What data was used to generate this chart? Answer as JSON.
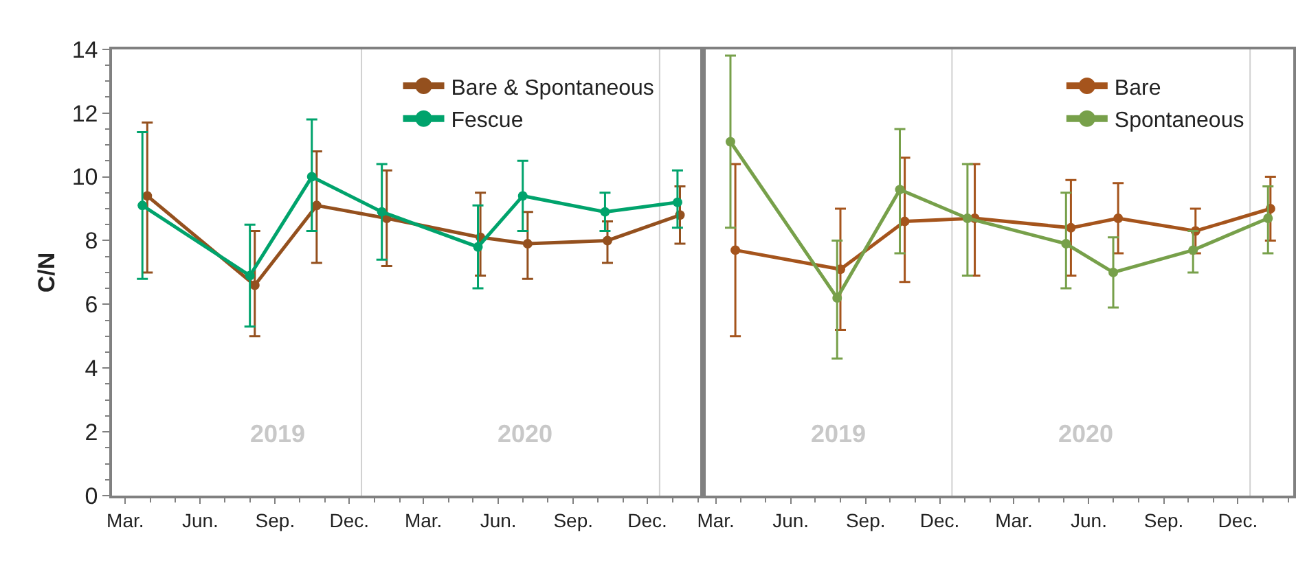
{
  "chart_data": [
    {
      "type": "line",
      "ylabel": "C/N",
      "xlim": [
        "2019-02-13",
        "2021-02-07"
      ],
      "ylim": [
        0,
        14
      ],
      "yticks": [
        0,
        2,
        4,
        6,
        8,
        10,
        12,
        14
      ],
      "xticks": [
        {
          "value": "2019-03-01",
          "label": "Mar."
        },
        {
          "value": "2019-06-01",
          "label": "Jun."
        },
        {
          "value": "2019-09-01",
          "label": "Sep."
        },
        {
          "value": "2019-12-01",
          "label": "Dec."
        },
        {
          "value": "2020-03-01",
          "label": "Mar."
        },
        {
          "value": "2020-06-01",
          "label": "Jun."
        },
        {
          "value": "2020-09-01",
          "label": "Sep."
        },
        {
          "value": "2020-12-01",
          "label": "Dec."
        }
      ],
      "legend": "top right",
      "marker": "circle",
      "grid": false,
      "ref_lines": [
        {
          "axis": "x",
          "value": "2019-12-16",
          "color": "#d0d0d0"
        },
        {
          "axis": "x",
          "value": "2020-12-16",
          "color": "#d0d0d0"
        }
      ],
      "annotations": [
        "2019",
        "2020"
      ],
      "series": [
        {
          "name": "Bare & Spontaneous",
          "color": "#94501e",
          "x": [
            "2019-03-28",
            "2019-08-07",
            "2019-10-22",
            "2020-01-16",
            "2020-05-10",
            "2020-07-07",
            "2020-10-13",
            "2021-01-10"
          ],
          "values": [
            9.4,
            6.6,
            9.1,
            8.7,
            8.1,
            7.9,
            8.0,
            8.8
          ],
          "errors": [
            [
              7.0,
              11.7
            ],
            [
              5.0,
              8.3
            ],
            [
              7.3,
              10.8
            ],
            [
              7.2,
              10.2
            ],
            [
              6.9,
              9.5
            ],
            [
              6.8,
              8.9
            ],
            [
              7.3,
              8.6
            ],
            [
              7.9,
              9.7
            ]
          ]
        },
        {
          "name": "Fescue",
          "color": "#00a36c",
          "x": [
            "2019-03-22",
            "2019-08-01",
            "2019-10-16",
            "2020-01-10",
            "2020-05-07",
            "2020-07-01",
            "2020-10-10",
            "2021-01-07"
          ],
          "values": [
            9.1,
            6.9,
            10.0,
            8.9,
            7.8,
            9.4,
            8.9,
            9.2
          ],
          "errors": [
            [
              6.8,
              11.4
            ],
            [
              5.3,
              8.5
            ],
            [
              8.3,
              11.8
            ],
            [
              7.4,
              10.4
            ],
            [
              6.5,
              9.1
            ],
            [
              8.3,
              10.5
            ],
            [
              8.3,
              9.5
            ],
            [
              8.4,
              10.2
            ]
          ]
        }
      ]
    },
    {
      "type": "line",
      "xlim": [
        "2019-02-13",
        "2021-02-07"
      ],
      "ylim": [
        0,
        14
      ],
      "yticks": [
        0,
        2,
        4,
        6,
        8,
        10,
        12,
        14
      ],
      "tick_labels": "x",
      "xticks": [
        {
          "value": "2019-03-01",
          "label": "Mar."
        },
        {
          "value": "2019-06-01",
          "label": "Jun."
        },
        {
          "value": "2019-09-01",
          "label": "Sep."
        },
        {
          "value": "2019-12-01",
          "label": "Dec."
        },
        {
          "value": "2020-03-01",
          "label": "Mar."
        },
        {
          "value": "2020-06-01",
          "label": "Jun."
        },
        {
          "value": "2020-09-01",
          "label": "Sep."
        },
        {
          "value": "2020-12-01",
          "label": "Dec."
        }
      ],
      "legend": "top right",
      "marker": "circle",
      "grid": false,
      "ref_lines": [
        {
          "axis": "x",
          "value": "2019-12-16",
          "color": "#d0d0d0"
        },
        {
          "axis": "x",
          "value": "2020-12-16",
          "color": "#d0d0d0"
        }
      ],
      "annotations": [
        "2019",
        "2020"
      ],
      "series": [
        {
          "name": "Bare",
          "color": "#a5541c",
          "x": [
            "2019-03-25",
            "2019-08-01",
            "2019-10-19",
            "2020-01-13",
            "2020-05-10",
            "2020-07-07",
            "2020-10-10",
            "2021-01-10"
          ],
          "values": [
            7.7,
            7.1,
            8.6,
            8.7,
            8.4,
            8.7,
            8.3,
            9.0
          ],
          "errors": [
            [
              5.0,
              10.4
            ],
            [
              5.2,
              9.0
            ],
            [
              6.7,
              10.6
            ],
            [
              6.9,
              10.4
            ],
            [
              6.9,
              9.9
            ],
            [
              7.6,
              9.8
            ],
            [
              7.6,
              9.0
            ],
            [
              8.0,
              10.0
            ]
          ]
        },
        {
          "name": "Spontaneous",
          "color": "#77a04a",
          "x": [
            "2019-03-19",
            "2019-07-28",
            "2019-10-13",
            "2020-01-04",
            "2020-05-04",
            "2020-07-01",
            "2020-10-07",
            "2021-01-07"
          ],
          "values": [
            11.1,
            6.2,
            9.6,
            8.7,
            7.9,
            7.0,
            7.7,
            8.7
          ],
          "errors": [
            [
              8.4,
              13.8
            ],
            [
              4.3,
              8.0
            ],
            [
              7.6,
              11.5
            ],
            [
              6.9,
              10.4
            ],
            [
              6.5,
              9.5
            ],
            [
              5.9,
              8.1
            ],
            [
              7.0,
              8.3
            ],
            [
              7.6,
              9.7
            ]
          ]
        }
      ]
    }
  ]
}
